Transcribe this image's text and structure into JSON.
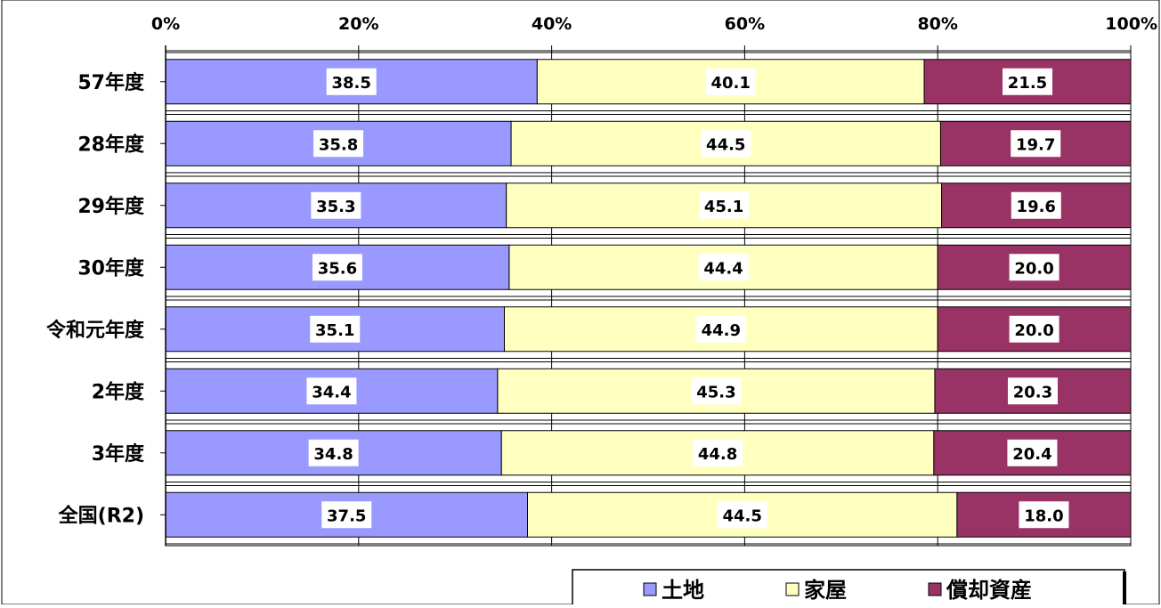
{
  "colors": {
    "land": "#9999ff",
    "house": "#ffffc0",
    "depreciable": "#993366",
    "grid": "#000000",
    "label_bg": "#ffffff"
  },
  "chart_data": {
    "type": "bar",
    "orientation": "horizontal",
    "stacked": "percent",
    "title": "",
    "xlabel": "",
    "ylabel": "",
    "xlim": [
      0,
      100
    ],
    "x_ticks": [
      "0%",
      "20%",
      "40%",
      "60%",
      "80%",
      "100%"
    ],
    "x_tick_values": [
      0,
      20,
      40,
      60,
      80,
      100
    ],
    "grid": true,
    "legend_position": "bottom-right",
    "categories": [
      "57年度",
      "28年度",
      "29年度",
      "30年度",
      "令和元年度",
      "2年度",
      "3年度",
      "全国(R2)"
    ],
    "series": [
      {
        "name": "土地",
        "color_key": "land",
        "values": [
          38.5,
          35.8,
          35.3,
          35.6,
          35.1,
          34.4,
          34.8,
          37.5
        ],
        "labels": [
          "38.5",
          "35.8",
          "35.3",
          "35.6",
          "35.1",
          "34.4",
          "34.8",
          "37.5"
        ]
      },
      {
        "name": "家屋",
        "color_key": "house",
        "values": [
          40.1,
          44.5,
          45.1,
          44.4,
          44.9,
          45.3,
          44.8,
          44.5
        ],
        "labels": [
          "40.1",
          "44.5",
          "45.1",
          "44.4",
          "44.9",
          "45.3",
          "44.8",
          "44.5"
        ]
      },
      {
        "name": "償却資産",
        "color_key": "depreciable",
        "values": [
          21.5,
          19.7,
          19.6,
          20.0,
          20.0,
          20.3,
          20.4,
          18.0
        ],
        "labels": [
          "21.5",
          "19.7",
          "19.6",
          "20.0",
          "20.0",
          "20.3",
          "20.4",
          "18.0"
        ]
      }
    ]
  }
}
